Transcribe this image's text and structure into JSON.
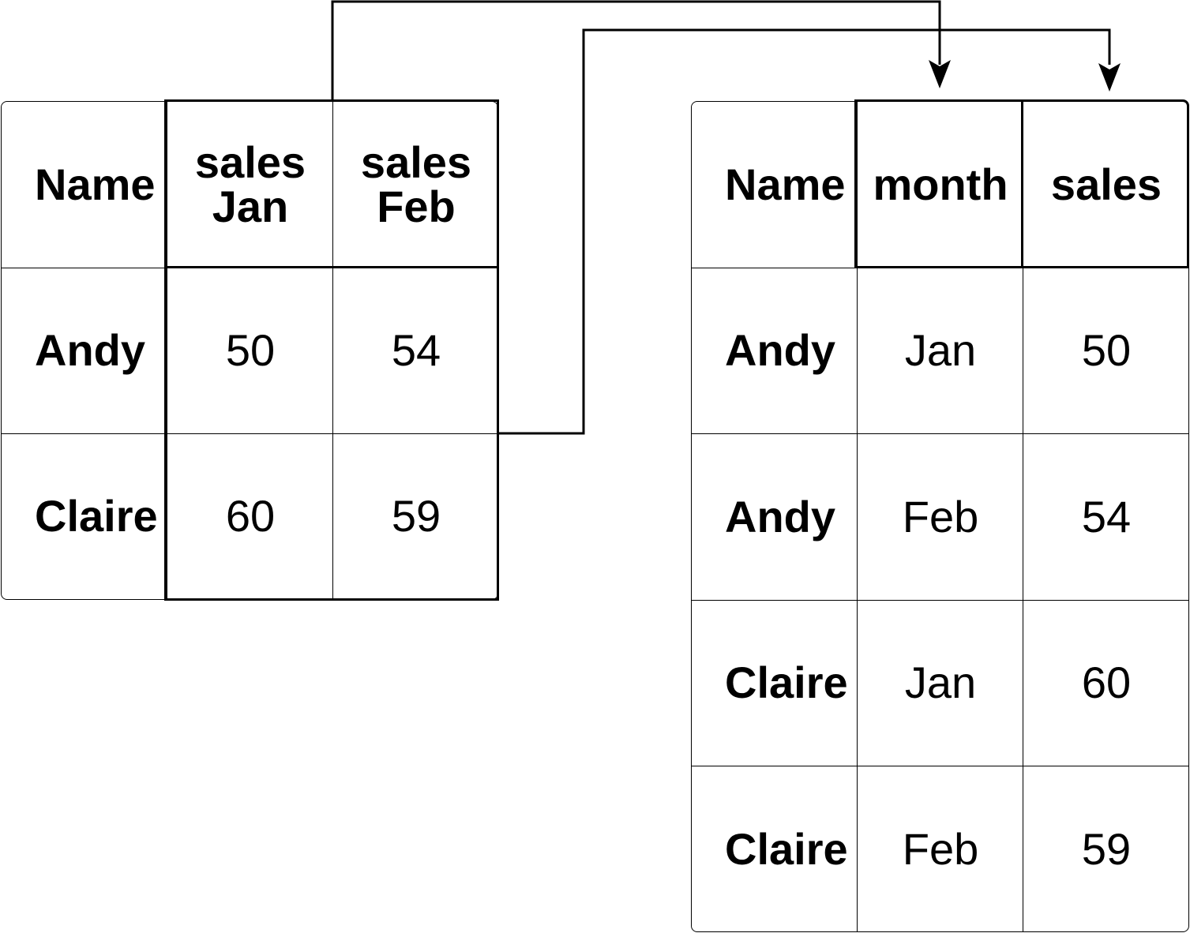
{
  "wide_table": {
    "headers": [
      "Name",
      "sales\nJan",
      "sales\nFeb"
    ],
    "rows": [
      [
        "Andy",
        "50",
        "54"
      ],
      [
        "Claire",
        "60",
        "59"
      ]
    ]
  },
  "long_table": {
    "headers": [
      "Name",
      "month",
      "sales"
    ],
    "rows": [
      [
        "Andy",
        "Jan",
        "50"
      ],
      [
        "Andy",
        "Feb",
        "54"
      ],
      [
        "Claire",
        "Jan",
        "60"
      ],
      [
        "Claire",
        "Feb",
        "59"
      ]
    ]
  },
  "colors": {
    "line": "#000000",
    "background": "#ffffff"
  }
}
